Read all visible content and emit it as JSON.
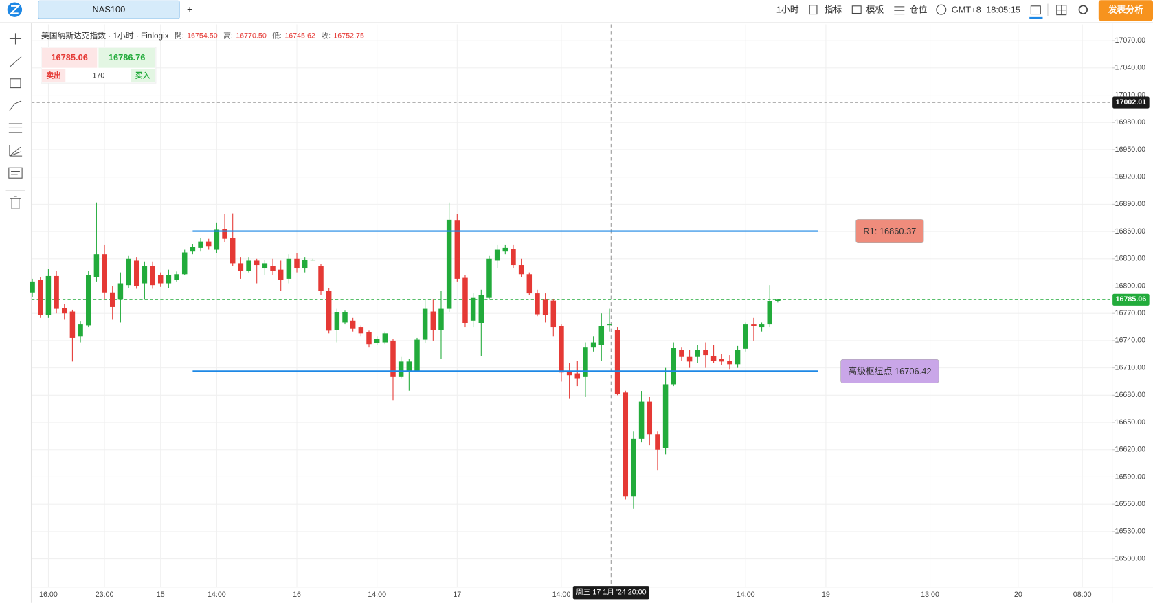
{
  "toolbar": {
    "tab": "NAS100",
    "add": "+",
    "interval": "1小时",
    "indicators": "指标",
    "templates": "模板",
    "positions": "仓位",
    "timezone": "GMT+8",
    "clock": "18:05:15",
    "publish": "发表分析"
  },
  "quote": {
    "sell_price": 16785.06,
    "buy_price": 16786.76,
    "sell": "卖出",
    "volume": 170,
    "buy": "买入"
  },
  "chart_data": {
    "type": "candlestick",
    "title": "美国纳斯达克指数 · 1小时 · Finlogix",
    "ohlc": [
      {
        "label": "開:",
        "value": "16754.50"
      },
      {
        "label": "高:",
        "value": "16770.50"
      },
      {
        "label": "低:",
        "value": "16745.62"
      },
      {
        "label": "收:",
        "value": "16752.75"
      }
    ],
    "crosshair_label": "周三 17 1月 '24 20:00",
    "up_color": "#22ab3b",
    "down_color": "#e53935",
    "grid": true,
    "categories": [
      null,
      null,
      "16:00",
      null,
      null,
      null,
      null,
      null,
      null,
      "23:00",
      null,
      null,
      null,
      null,
      null,
      null,
      "15",
      null,
      null,
      null,
      null,
      null,
      null,
      "14:00",
      null,
      null,
      null,
      null,
      null,
      null,
      null,
      null,
      null,
      "16",
      null,
      null,
      null,
      null,
      null,
      null,
      null,
      null,
      null,
      "14:00",
      null,
      null,
      null,
      null,
      null,
      null,
      null,
      null,
      null,
      "17",
      null,
      null,
      null,
      null,
      null,
      null,
      null,
      null,
      null,
      null,
      null,
      null,
      "14:00",
      null,
      null,
      null,
      null,
      null,
      null,
      null,
      null,
      null,
      null,
      null,
      null,
      null,
      null,
      null,
      null,
      null,
      null,
      null,
      null,
      null,
      null,
      "14:00",
      null,
      null,
      null,
      null,
      null,
      null,
      null,
      null,
      null,
      "19",
      null,
      null,
      null,
      null,
      null,
      null,
      null,
      null,
      null,
      null,
      null,
      null,
      "13:00",
      null,
      null,
      null,
      null,
      null,
      null,
      null,
      null,
      null,
      null,
      "20",
      null,
      null,
      null,
      null,
      null,
      null,
      null,
      "08:00"
    ],
    "series": {
      "open": [
        16793,
        16807,
        16768,
        16811,
        16776,
        16772,
        16745,
        16757,
        16810,
        16835,
        16793,
        16785,
        16801,
        16828,
        16803,
        16822,
        16812,
        16803,
        16807,
        16813,
        16838,
        16842,
        16849,
        16840,
        16863,
        16853,
        16825,
        16817,
        16828,
        16820,
        16822,
        16818,
        16808,
        16830,
        16820,
        16829,
        16822,
        16795,
        16752,
        16760,
        16762,
        16755,
        16749,
        16737,
        16738,
        16740,
        16700,
        16707,
        16707,
        16741,
        16772,
        16752,
        16775,
        16872,
        16809,
        16762,
        16759,
        16787,
        16828,
        16838,
        16841,
        16823,
        16813,
        16792,
        16785,
        16784,
        16756,
        16706,
        16704,
        16700,
        16733,
        16735,
        16758,
        16752,
        16683,
        16569,
        16632,
        16673,
        16637,
        16622,
        16692,
        16730,
        16722,
        16722,
        16730,
        16723,
        16720,
        16718,
        16714,
        16731,
        16758,
        16755,
        16758,
        16783,
        null,
        null,
        null,
        null,
        null,
        null,
        null,
        null,
        null,
        null,
        null,
        null,
        null,
        null,
        null,
        null,
        null,
        null,
        null,
        null,
        null,
        null,
        null,
        null,
        null,
        null,
        null,
        null,
        null,
        null,
        null,
        null,
        null,
        null,
        null,
        null,
        null,
        null
      ],
      "high": [
        16808,
        16810,
        16819,
        16817,
        16780,
        16774,
        16761,
        16817,
        16892,
        16845,
        16800,
        16815,
        16833,
        16832,
        16827,
        16827,
        16815,
        16818,
        16816,
        16840,
        16846,
        16853,
        16852,
        16870,
        16879,
        16880,
        16832,
        16832,
        16830,
        16829,
        16830,
        16828,
        16835,
        16836,
        16832,
        16830,
        16824,
        16798,
        16775,
        16773,
        16765,
        16757,
        16751,
        16745,
        16750,
        16742,
        16722,
        16720,
        16743,
        16785,
        16785,
        16795,
        16892,
        16879,
        16812,
        16792,
        16796,
        16833,
        16845,
        16845,
        16845,
        16830,
        16815,
        16796,
        16792,
        16786,
        16758,
        16715,
        16718,
        16738,
        16745,
        16770,
        16775,
        16755,
        16685,
        16640,
        16684,
        16678,
        16640,
        16710,
        16738,
        16733,
        16730,
        16735,
        16738,
        16735,
        16725,
        16724,
        16734,
        16760,
        16765,
        16760,
        16801,
        16786,
        null,
        null,
        null,
        null,
        null,
        null,
        null,
        null,
        null,
        null,
        null,
        null,
        null,
        null,
        null,
        null,
        null,
        null,
        null,
        null,
        null,
        null,
        null,
        null,
        null,
        null,
        null,
        null,
        null,
        null,
        null,
        null,
        null,
        null,
        null,
        null,
        null,
        null
      ],
      "low": [
        16788,
        16765,
        16765,
        16770,
        16763,
        16717,
        16738,
        16755,
        16805,
        16785,
        16763,
        16760,
        16798,
        16797,
        16785,
        16797,
        16799,
        16798,
        16805,
        16812,
        16835,
        16838,
        16840,
        16836,
        16848,
        16822,
        16808,
        16815,
        16803,
        16812,
        16812,
        16795,
        16803,
        16815,
        16815,
        16828,
        16790,
        16748,
        16738,
        16758,
        16750,
        16745,
        16733,
        16735,
        16736,
        16674,
        16698,
        16685,
        16706,
        16737,
        16740,
        16720,
        16771,
        16805,
        16755,
        16755,
        16723,
        16785,
        16820,
        16835,
        16820,
        16810,
        16790,
        16767,
        16760,
        16745,
        16695,
        16676,
        16690,
        16678,
        16728,
        16718,
        16750,
        16680,
        16565,
        16555,
        16628,
        16625,
        16597,
        16615,
        16690,
        16718,
        16710,
        16715,
        16710,
        16715,
        16713,
        16708,
        16710,
        16728,
        16740,
        16750,
        16755,
        16782,
        null,
        null,
        null,
        null,
        null,
        null,
        null,
        null,
        null,
        null,
        null,
        null,
        null,
        null,
        null,
        null,
        null,
        null,
        null,
        null,
        null,
        null,
        null,
        null,
        null,
        null,
        null,
        null,
        null,
        null,
        null,
        null,
        null,
        null,
        null,
        null,
        null,
        null
      ],
      "close": [
        16805,
        16768,
        16811,
        16775,
        16770,
        16743,
        16758,
        16812,
        16835,
        16793,
        16777,
        16803,
        16830,
        16800,
        16822,
        16801,
        16803,
        16812,
        16813,
        16837,
        16843,
        16849,
        16844,
        16862,
        16852,
        16825,
        16817,
        16828,
        16823,
        16825,
        16817,
        16807,
        16830,
        16820,
        16829,
        16829,
        16795,
        16751,
        16771,
        16771,
        16753,
        16748,
        16736,
        16742,
        16748,
        16700,
        16717,
        16717,
        16741,
        16775,
        16752,
        16775,
        16873,
        16808,
        16759,
        16787,
        16790,
        16830,
        16840,
        16842,
        16823,
        16813,
        16792,
        16769,
        16768,
        16755,
        16705,
        16702,
        16698,
        16733,
        16738,
        16756,
        16758,
        16681,
        16569,
        16632,
        16673,
        16637,
        16620,
        16692,
        16732,
        16722,
        16717,
        16730,
        16724,
        16718,
        16717,
        16714,
        16730,
        16758,
        16756,
        16758,
        16783,
        16785,
        null,
        null,
        null,
        null,
        null,
        null,
        null,
        null,
        null,
        null,
        null,
        null,
        null,
        null,
        null,
        null,
        null,
        null,
        null,
        null,
        null,
        null,
        null,
        null,
        null,
        null,
        null,
        null,
        null,
        null,
        null,
        null,
        null,
        null,
        null,
        null,
        null,
        null
      ]
    },
    "ylim": [
      16469.3,
      17087.8
    ],
    "yticks": [
      {
        "value": 16500,
        "label": "16500.00"
      },
      {
        "value": 16530,
        "label": "16530.00"
      },
      {
        "value": 16560,
        "label": "16560.00"
      },
      {
        "value": 16590,
        "label": "16590.00"
      },
      {
        "value": 16620,
        "label": "16620.00"
      },
      {
        "value": 16650,
        "label": "16650.00"
      },
      {
        "value": 16680,
        "label": "16680.00"
      },
      {
        "value": 16710,
        "label": "16710.00"
      },
      {
        "value": 16740,
        "label": "16740.00"
      },
      {
        "value": 16770,
        "label": "16770.00"
      },
      {
        "value": 16800,
        "label": "16800.00"
      },
      {
        "value": 16830,
        "label": "16830.00"
      },
      {
        "value": 16860,
        "label": "16860.00"
      },
      {
        "value": 16890,
        "label": "16890.00"
      },
      {
        "value": 16920,
        "label": "16920.00"
      },
      {
        "value": 16950,
        "label": "16950.00"
      },
      {
        "value": 16980,
        "label": "16980.00"
      },
      {
        "value": 17010,
        "label": "17010.00"
      },
      {
        "value": 17040,
        "label": "17040.00"
      },
      {
        "value": 17070,
        "label": "17070.00"
      }
    ],
    "levels": [
      {
        "label": "R1: 16860.37",
        "value": 16860.37,
        "color": "#1e88e5",
        "label_color": "#ef8c7c"
      },
      {
        "label": "高級枢纽点 16706.42",
        "value": 16706.42,
        "color": "#1e88e5",
        "label_color": "#c9a6e8"
      }
    ],
    "markers": [
      {
        "value": 17002.01,
        "color": "#1a1a1a",
        "line_color": "#666666"
      },
      {
        "value": 16785.06,
        "color": "#22ab3b",
        "line_color": "#22ab3b"
      }
    ]
  }
}
